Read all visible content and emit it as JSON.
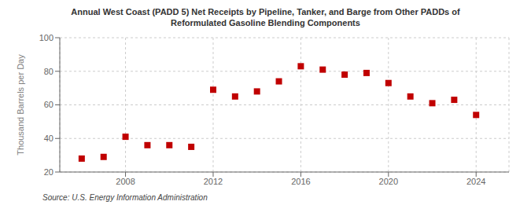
{
  "chart_data": {
    "type": "scatter",
    "title": "Annual West Coast (PADD 5) Net Receipts by Pipeline, Tanker, and Barge from Other PADDs of\nReformulated Gasoline Blending Components",
    "ylabel": "Thousand Barrels per Day",
    "source": "Source: U.S. Energy Information Administration",
    "x": [
      2006,
      2007,
      2008,
      2009,
      2010,
      2011,
      2012,
      2013,
      2014,
      2015,
      2016,
      2017,
      2018,
      2019,
      2020,
      2021,
      2022,
      2023,
      2024
    ],
    "values": [
      28,
      29,
      41,
      36,
      36,
      35,
      69,
      65,
      68,
      74,
      83,
      81,
      78,
      79,
      73,
      65,
      61,
      63,
      54
    ],
    "color": "#c00000",
    "marker": "square",
    "xlim": [
      2005,
      2025.5
    ],
    "ylim": [
      20,
      100
    ],
    "xticks": [
      2008,
      2012,
      2016,
      2020,
      2024
    ],
    "yticks": [
      20,
      40,
      60,
      80,
      100
    ],
    "grid": true
  }
}
